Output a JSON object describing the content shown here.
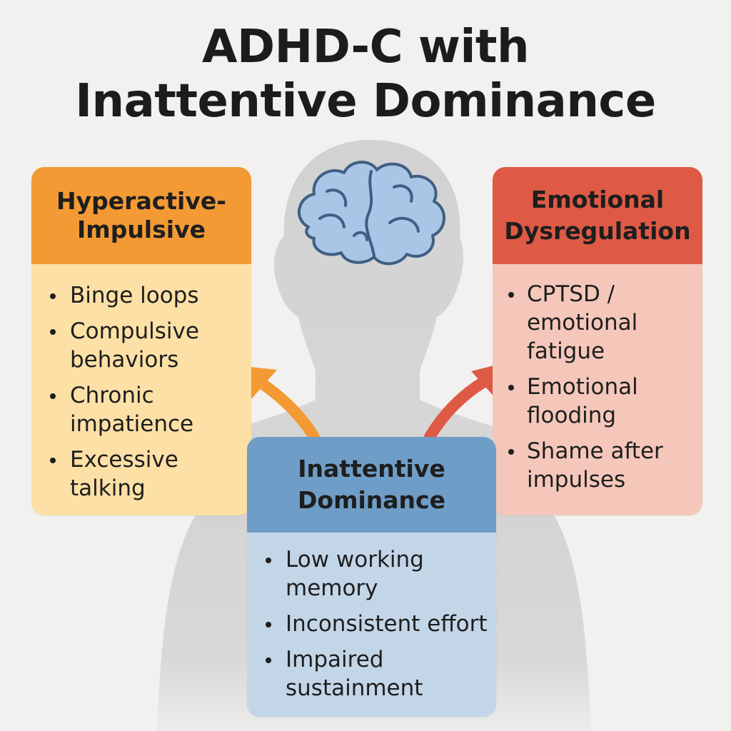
{
  "title": {
    "line1": "ADHD-C with",
    "line2": "Inattentive Dominance"
  },
  "colors": {
    "background": "#f2f1ef",
    "silhouette": "#d3d3d3",
    "brain": "#a9c6e6",
    "hyper_header": "#f39a35",
    "hyper_body": "#fde0a6",
    "emo_header": "#de5a45",
    "emo_body": "#f5c7bb",
    "inatt_header": "#6e9dc7",
    "inatt_body": "#c3d6e8",
    "arrow_left": "#f39a35",
    "arrow_right": "#de5a45"
  },
  "icons": [
    "person-silhouette-icon",
    "brain-icon",
    "arrow-up-left-icon",
    "arrow-up-right-icon"
  ],
  "cards": {
    "hyper": {
      "title_line1": "Hyperactive-",
      "title_line2": "Impulsive",
      "items": [
        {
          "line1": "Binge loops",
          "line2": ""
        },
        {
          "line1": "Compulsive",
          "line2": "behaviors"
        },
        {
          "line1": "Chronic",
          "line2": "impatience"
        },
        {
          "line1": "Excessive",
          "line2": "talking"
        }
      ]
    },
    "emo": {
      "title_line1": "Emotional",
      "title_line2": "Dysregulation",
      "items": [
        {
          "line1": "CPTSD /",
          "line2": "emotional",
          "line3": "fatigue"
        },
        {
          "line1": "Emotional",
          "line2": "flooding",
          "line3": ""
        },
        {
          "line1": "Shame after",
          "line2": "impulses",
          "line3": ""
        }
      ]
    },
    "inatt": {
      "title_line1": "Inattentive",
      "title_line2": "Dominance",
      "items": [
        {
          "line1": "Low working",
          "line2": "memory"
        },
        {
          "line1": "Inconsistent effort",
          "line2": ""
        },
        {
          "line1": "Impaired",
          "line2": "sustainment"
        }
      ]
    }
  }
}
